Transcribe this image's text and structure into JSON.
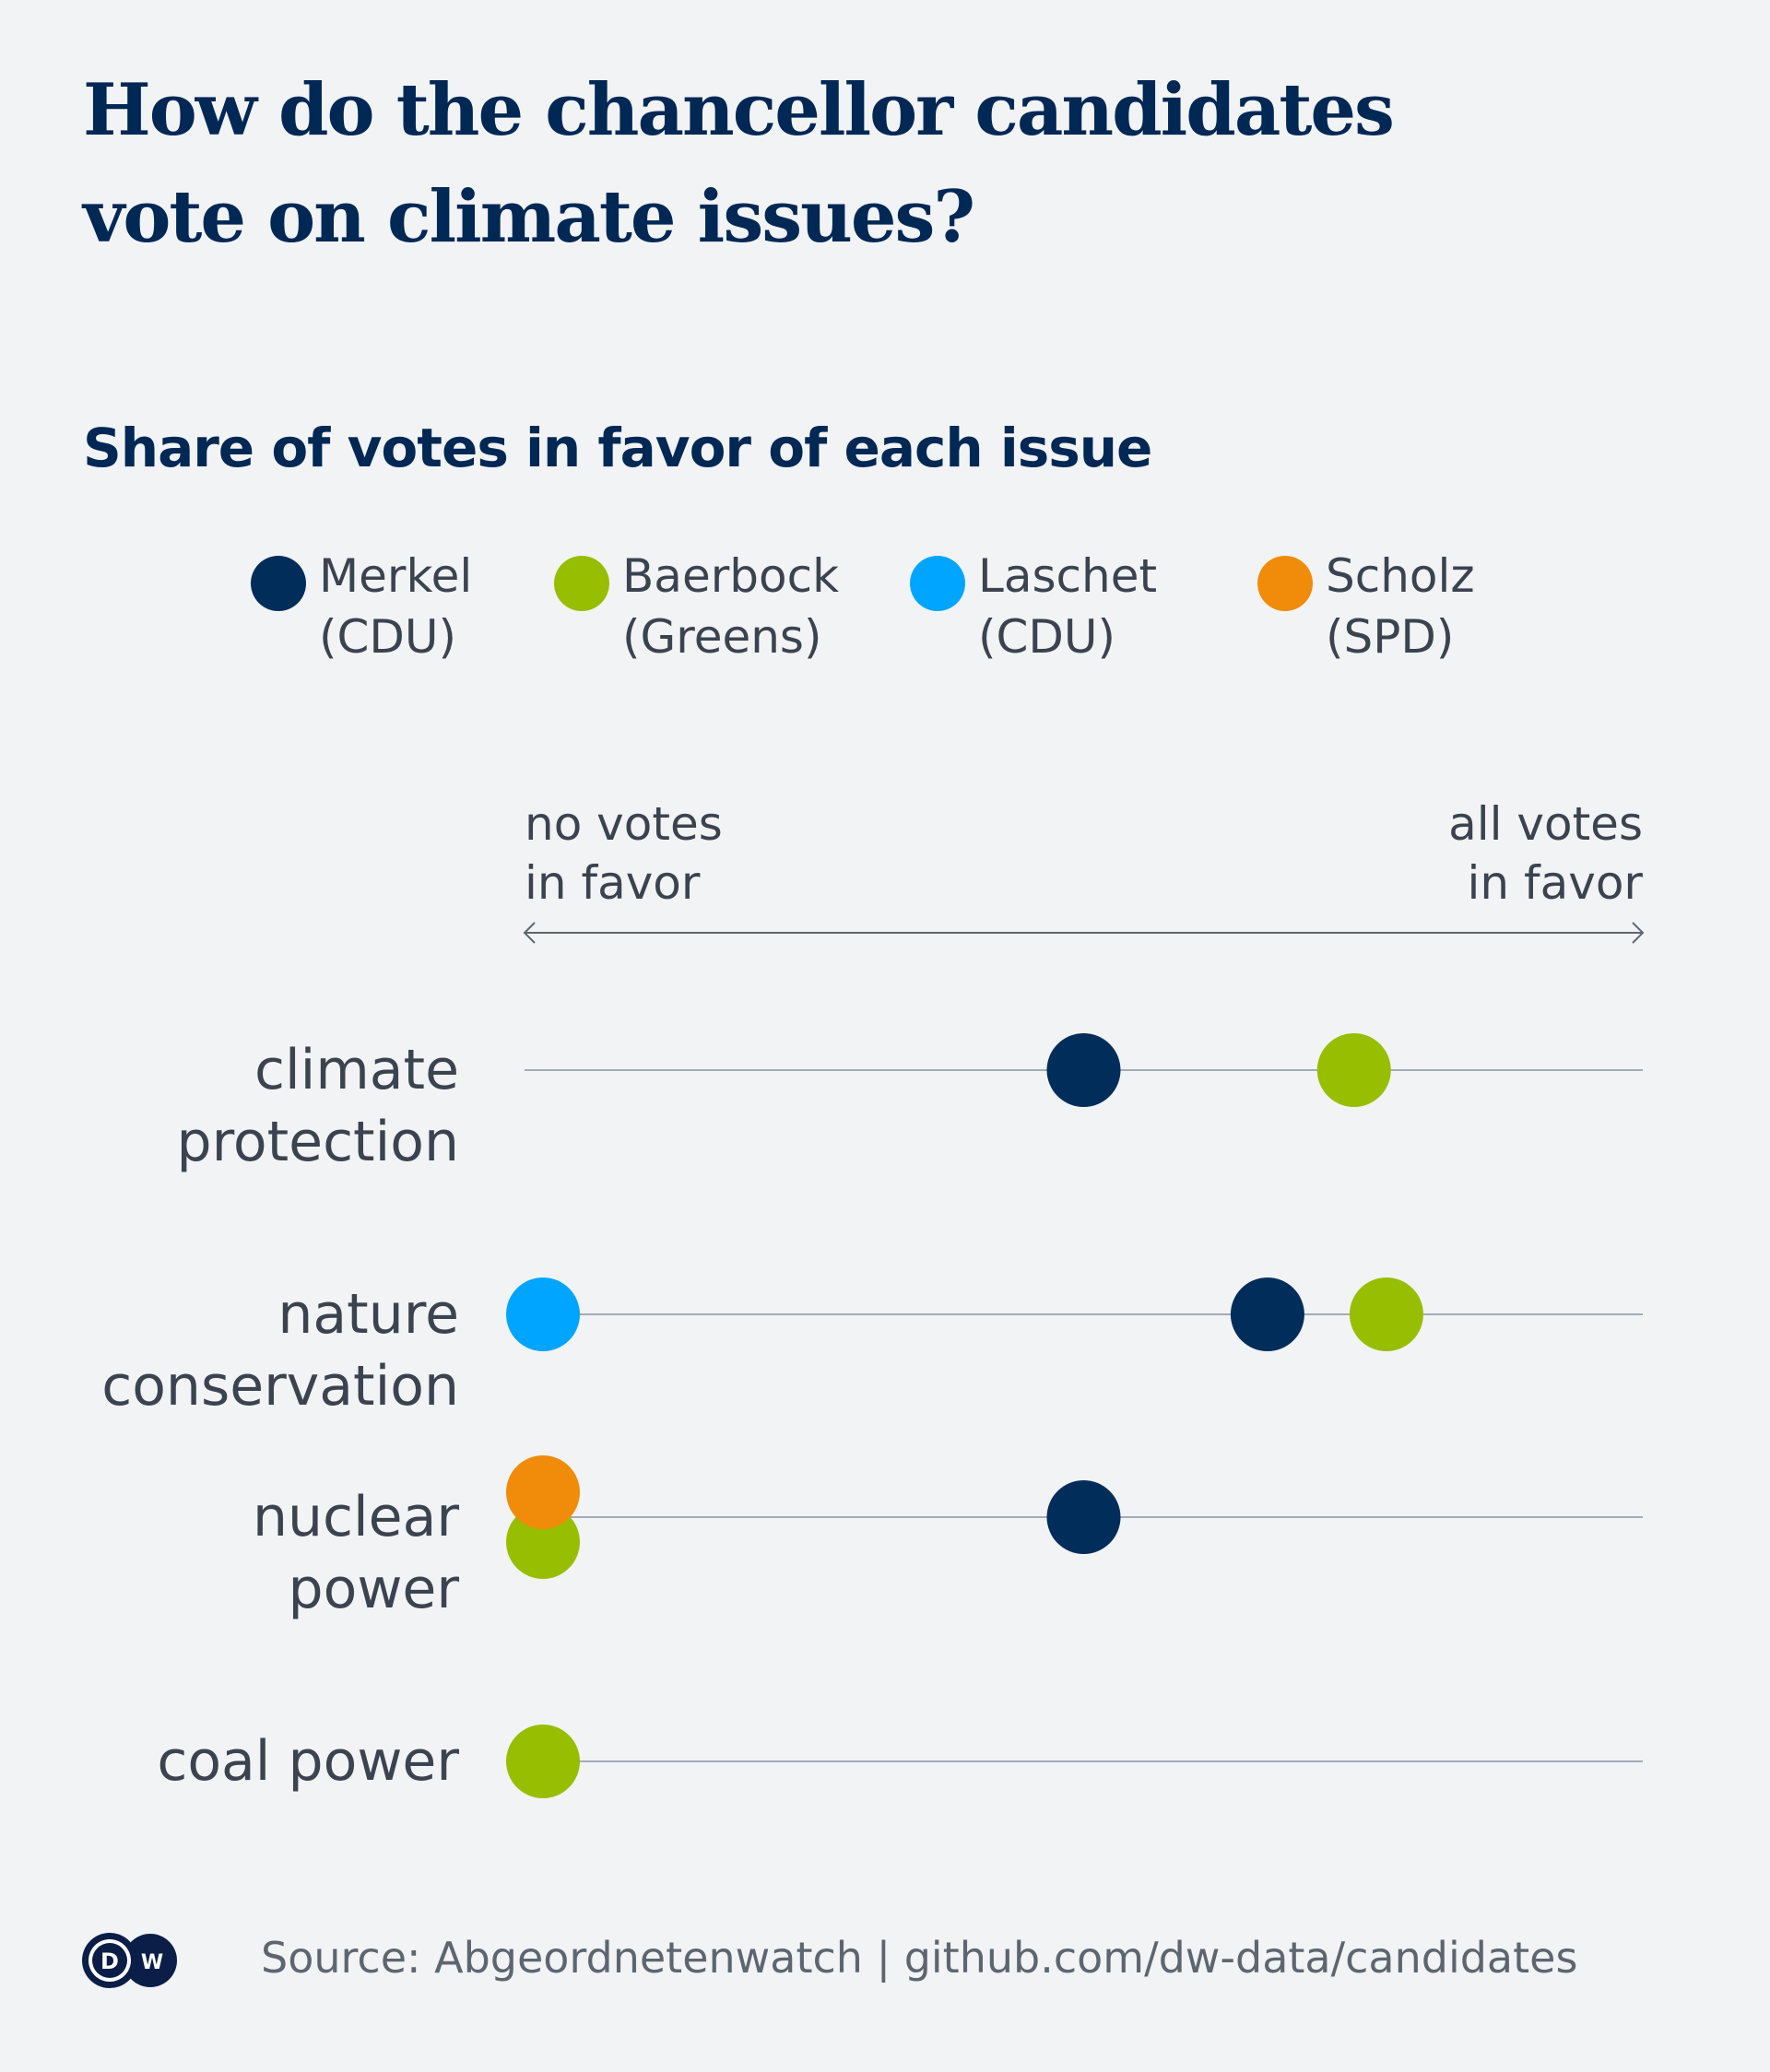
{
  "title_lines": [
    "How do the chancellor candidates",
    "vote on climate issues?"
  ],
  "subtitle": "Share of votes in favor of each issue",
  "legend": [
    {
      "name": "Merkel",
      "party": "(CDU)",
      "color": "#002d5a"
    },
    {
      "name": "Baerbock",
      "party": "(Greens)",
      "color": "#97be00"
    },
    {
      "name": "Laschet",
      "party": "(CDU)",
      "color": "#00a5ff"
    },
    {
      "name": "Scholz",
      "party": "(SPD)",
      "color": "#f08c0a"
    }
  ],
  "axis": {
    "left_label_lines": [
      "no votes",
      "in favor"
    ],
    "right_label_lines": [
      "all votes",
      "in favor"
    ]
  },
  "footer": {
    "logo_text": "DW",
    "source": "Source: Abgeordnetenwatch | github.com/dw-data/candidates"
  },
  "chart_data": {
    "type": "scatter",
    "title": "How do the chancellor candidates vote on climate issues?",
    "subtitle": "Share of votes in favor of each issue",
    "xlabel": "share of votes in favor",
    "xlim": [
      0,
      1
    ],
    "x_ends": [
      "no votes in favor",
      "all votes in favor"
    ],
    "legend_position": "top",
    "grid": false,
    "categories": [
      {
        "label_lines": [
          "climate",
          "protection"
        ],
        "label": "climate protection"
      },
      {
        "label_lines": [
          "nature",
          "conservation"
        ],
        "label": "nature conservation"
      },
      {
        "label_lines": [
          "nuclear",
          "power"
        ],
        "label": "nuclear power"
      },
      {
        "label_lines": [
          "coal power"
        ],
        "label": "coal power"
      }
    ],
    "points": [
      {
        "category": "climate protection",
        "candidate": "Merkel",
        "value": 0.5
      },
      {
        "category": "climate protection",
        "candidate": "Baerbock",
        "value": 0.75
      },
      {
        "category": "nature conservation",
        "candidate": "Laschet",
        "value": 0.0
      },
      {
        "category": "nature conservation",
        "candidate": "Merkel",
        "value": 0.67
      },
      {
        "category": "nature conservation",
        "candidate": "Baerbock",
        "value": 0.78
      },
      {
        "category": "nuclear power",
        "candidate": "Baerbock",
        "value": 0.0
      },
      {
        "category": "nuclear power",
        "candidate": "Scholz",
        "value": 0.0
      },
      {
        "category": "nuclear power",
        "candidate": "Merkel",
        "value": 0.5
      },
      {
        "category": "coal power",
        "candidate": "Baerbock",
        "value": 0.0
      }
    ]
  }
}
